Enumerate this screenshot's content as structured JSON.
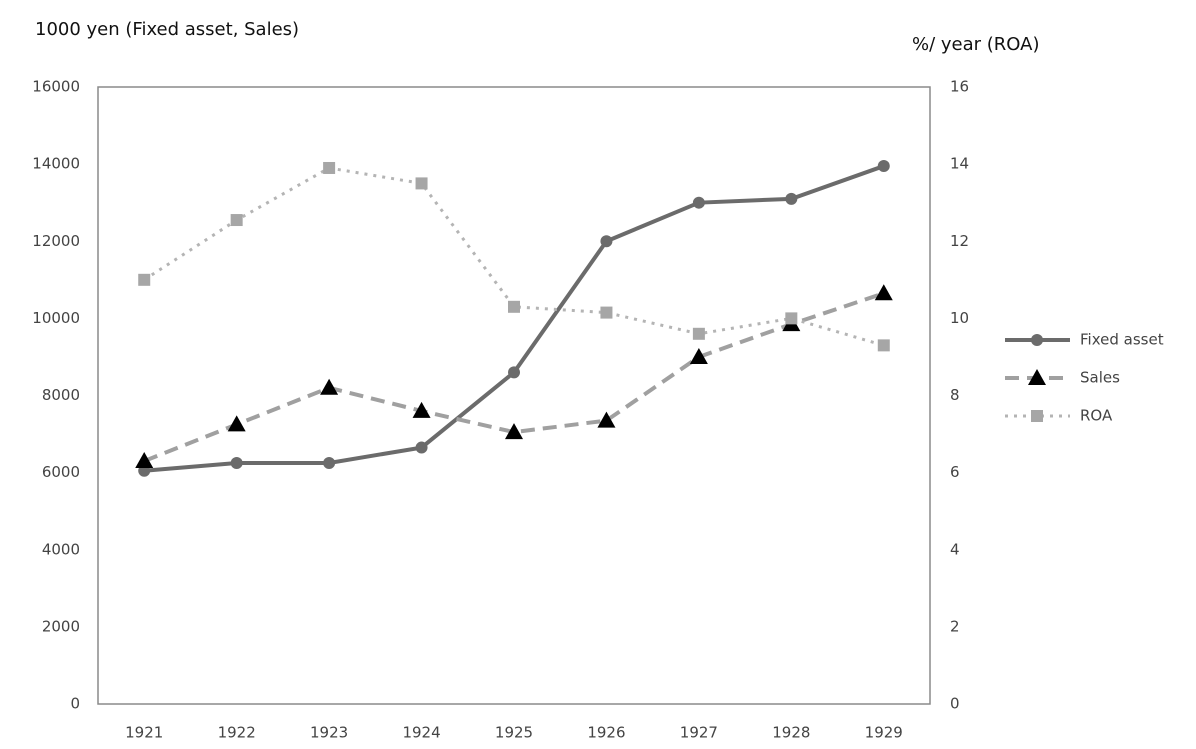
{
  "chart_data": {
    "type": "line",
    "y_title": "1000 yen (Fixed asset, Sales)",
    "y2_title": "%/ year (ROA)",
    "categories": [
      "1921",
      "1922",
      "1923",
      "1924",
      "1925",
      "1926",
      "1927",
      "1928",
      "1929"
    ],
    "series": [
      {
        "name": "Fixed asset",
        "color": "#6b6b6b",
        "marker_color": "#6b6b6b",
        "marker": "circle",
        "dash": "solid",
        "values": [
          6050,
          6250,
          6250,
          6650,
          8600,
          12000,
          13000,
          13100,
          13950
        ]
      },
      {
        "name": "Sales",
        "color": "#a0a0a0",
        "marker_color": "#000000",
        "marker": "triangle",
        "dash": "dashed",
        "values": [
          6300,
          7250,
          8200,
          7600,
          7050,
          7350,
          9000,
          9850,
          10650
        ]
      },
      {
        "name": "ROA",
        "color": "#b4b4b4",
        "marker_color": "#a6a6a6",
        "marker": "square",
        "dash": "dotted",
        "axis": "y2",
        "values": [
          11.0,
          12.55,
          13.9,
          13.5,
          10.3,
          10.15,
          9.6,
          10.0,
          9.3
        ]
      }
    ],
    "ylim": [
      0,
      16000
    ],
    "yticks": [
      0,
      2000,
      4000,
      6000,
      8000,
      10000,
      12000,
      14000,
      16000
    ],
    "y2lim": [
      0,
      16
    ],
    "y2ticks": [
      0,
      2,
      4,
      6,
      8,
      10,
      12,
      14,
      16
    ],
    "grid": false,
    "legend": "right"
  }
}
